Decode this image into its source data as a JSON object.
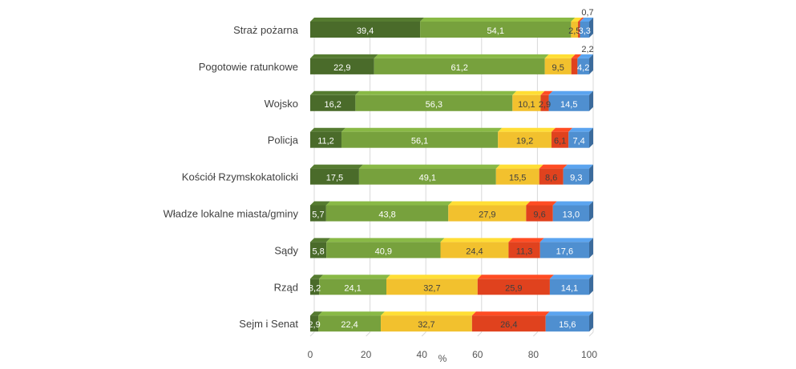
{
  "chart_data": {
    "type": "bar",
    "orientation": "horizontal",
    "stacked": true,
    "title": "",
    "xlabel": "%",
    "ylabel": "",
    "xlim": [
      0,
      100
    ],
    "x_ticks": [
      "0",
      "20",
      "40",
      "60",
      "80",
      "100"
    ],
    "grid": true,
    "legend": "none",
    "categories": [
      "Straż pożarna",
      "Pogotowie ratunkowe",
      "Wojsko",
      "Policja",
      "Kościół Rzymskokatolicki",
      "Władze lokalne miasta/gminy",
      "Sądy",
      "Rząd",
      "Sejm i Senat"
    ],
    "series": [
      {
        "color": "#4a6b2a",
        "values": [
          39.4,
          22.9,
          16.2,
          11.2,
          17.5,
          5.7,
          5.8,
          3.2,
          2.9
        ],
        "labels": [
          "39,4",
          "22,9",
          "16,2",
          "11,2",
          "17,5",
          "5,7",
          "5,8",
          "3,2",
          "2,9"
        ]
      },
      {
        "color": "#77a13d",
        "values": [
          54.1,
          61.2,
          56.3,
          56.1,
          49.1,
          43.8,
          40.9,
          24.1,
          22.4
        ],
        "labels": [
          "54,1",
          "61,2",
          "56,3",
          "56,1",
          "49,1",
          "43,8",
          "40,9",
          "24,1",
          "22,4"
        ]
      },
      {
        "color": "#f2c12e",
        "values": [
          2.5,
          9.5,
          10.1,
          19.2,
          15.5,
          27.9,
          24.4,
          32.7,
          32.7
        ],
        "labels": [
          "2,5",
          "9,5",
          "10,1",
          "19,2",
          "15,5",
          "27,9",
          "24,4",
          "32,7",
          "32,7"
        ]
      },
      {
        "color": "#e0421e",
        "values": [
          0.7,
          2.2,
          2.9,
          6.1,
          8.6,
          9.6,
          11.3,
          25.9,
          26.4
        ],
        "labels": [
          "0,7",
          "2,2",
          "2,9",
          "6,1",
          "8,6",
          "9,6",
          "11,3",
          "25,9",
          "26,4"
        ]
      },
      {
        "color": "#4f8fd0",
        "values": [
          3.3,
          4.2,
          14.5,
          7.4,
          9.3,
          13.0,
          17.6,
          14.1,
          15.6
        ],
        "labels": [
          "3,3",
          "4,2",
          "14,5",
          "7,4",
          "9,3",
          "13,0",
          "17,6",
          "14,1",
          "15,6"
        ]
      }
    ],
    "label_colors": [
      "#ffffff",
      "#ffffff",
      "#404040",
      "#404040",
      "#ffffff"
    ]
  }
}
